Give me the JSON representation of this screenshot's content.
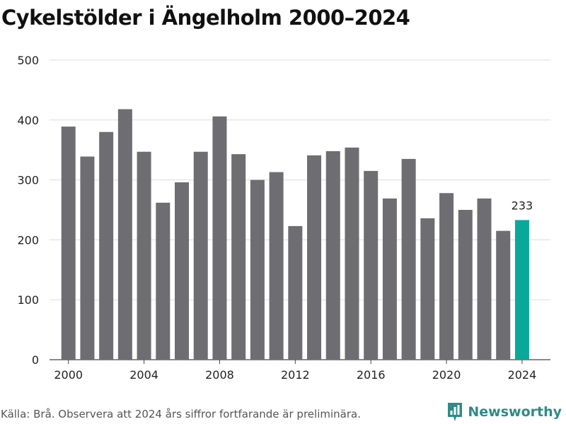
{
  "chart_data": {
    "type": "bar",
    "title": "Cykelstölder i Ängelholm 2000–2024",
    "x": [
      2000,
      2001,
      2002,
      2003,
      2004,
      2005,
      2006,
      2007,
      2008,
      2009,
      2010,
      2011,
      2012,
      2013,
      2014,
      2015,
      2016,
      2017,
      2018,
      2019,
      2020,
      2021,
      2022,
      2023,
      2024
    ],
    "values": [
      389,
      339,
      380,
      418,
      347,
      262,
      296,
      347,
      406,
      343,
      300,
      313,
      223,
      341,
      348,
      354,
      315,
      269,
      335,
      236,
      278,
      250,
      269,
      215,
      233
    ],
    "x_ticks": [
      2000,
      2004,
      2008,
      2012,
      2016,
      2020,
      2024
    ],
    "y_ticks": [
      0,
      100,
      200,
      300,
      400,
      500
    ],
    "ylim": [
      0,
      500
    ],
    "xlabel": "",
    "ylabel": "",
    "grid": true,
    "highlight_index": 24,
    "highlight_label": "233",
    "bar_color": "#6e6d72",
    "highlight_color": "#0aa89a"
  },
  "footer": {
    "source": "Källa: Brå. Observera att 2024 års siffror fortfarande är preliminära.",
    "brand": "Newsworthy",
    "brand_color": "#2e8b87",
    "brand_icon": "bar-chart-logo-icon"
  }
}
